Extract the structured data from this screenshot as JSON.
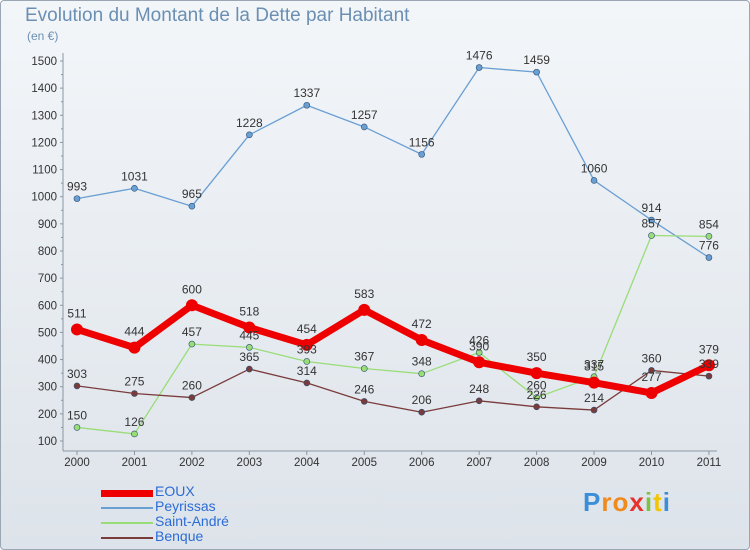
{
  "title": "Evolution du Montant de la Dette par Habitant",
  "unit": "(en €)",
  "logo": {
    "letters": [
      "P",
      "r",
      "o",
      "x",
      "i",
      "t",
      "i"
    ],
    "colors": [
      "#3a8fd8",
      "#f08a1c",
      "#f08a1c",
      "#e8312a",
      "#7fc241",
      "#f2c500",
      "#3a8fd8"
    ]
  },
  "chart_data": {
    "type": "line",
    "title": "Evolution du Montant de la Dette par Habitant",
    "ylabel": "(en €)",
    "xlabel": "",
    "ylim": [
      100,
      1500
    ],
    "yticks": [
      100,
      200,
      300,
      400,
      500,
      600,
      700,
      800,
      900,
      1000,
      1100,
      1200,
      1300,
      1400,
      1500
    ],
    "categories": [
      "2000",
      "2001",
      "2002",
      "2003",
      "2004",
      "2005",
      "2006",
      "2007",
      "2008",
      "2009",
      "2010",
      "2011"
    ],
    "grid": false,
    "legend": "bottom-left",
    "series": [
      {
        "name": "EOUX",
        "color": "#ee0000",
        "width": 7,
        "marker": 6,
        "values": [
          511,
          444,
          600,
          518,
          454,
          583,
          472,
          390,
          350,
          315,
          277,
          379
        ]
      },
      {
        "name": "Peyrissas",
        "color": "#6a9fd4",
        "width": 1.3,
        "marker": 3,
        "values": [
          993,
          1031,
          965,
          1228,
          1337,
          1257,
          1156,
          1476,
          1459,
          1060,
          914,
          776
        ]
      },
      {
        "name": "Saint-André",
        "color": "#99dd77",
        "width": 1.3,
        "marker": 3,
        "values": [
          150,
          126,
          457,
          445,
          393,
          367,
          348,
          426,
          260,
          337,
          857,
          854
        ]
      },
      {
        "name": "Benque",
        "color": "#7a3b3b",
        "width": 1.3,
        "marker": 3,
        "values": [
          303,
          275,
          260,
          365,
          314,
          246,
          206,
          248,
          226,
          214,
          360,
          339
        ]
      }
    ]
  }
}
